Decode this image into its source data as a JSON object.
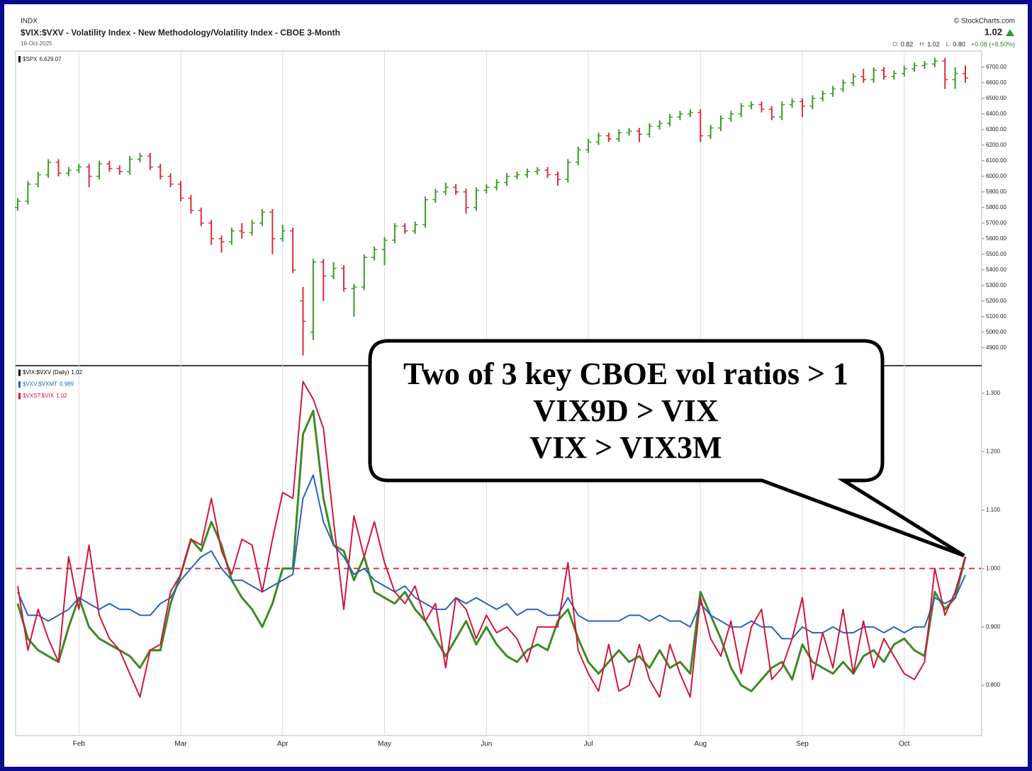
{
  "header": {
    "exchange": "INDX",
    "title": "$VIX:$VXV - Volatility Index - New Methodology/Volatility Index - CBOE 3-Month",
    "date": "16-Oct-2025",
    "source": "© StockCharts.com",
    "last": "1.02",
    "quote": [
      {
        "label": "O:",
        "value": "0.82"
      },
      {
        "label": "H:",
        "value": "1.02"
      },
      {
        "label": "L:",
        "value": "0.80"
      }
    ],
    "change": "+0.08 (+8.50%)"
  },
  "annotation": [
    "Two of 3 key CBOE vol ratios > 1",
    "VIX9D > VIX",
    "VIX > VIX3M"
  ],
  "chart_data": [
    {
      "type": "ohlc",
      "legend": "$SPX",
      "legend_value": "6,629.07",
      "up_color": "#3e9a2c",
      "down_color": "#d6303a",
      "ylim": [
        4790,
        6790
      ],
      "yticks": [
        {
          "value": 4900,
          "label": "4900.00"
        },
        {
          "value": 5000,
          "label": "5000.00"
        },
        {
          "value": 5100,
          "label": "5100.00"
        },
        {
          "value": 5200,
          "label": "5200.00"
        },
        {
          "value": 5300,
          "label": "5300.00"
        },
        {
          "value": 5400,
          "label": "5400.00"
        },
        {
          "value": 5500,
          "label": "5500.00"
        },
        {
          "value": 5600,
          "label": "5600.00"
        },
        {
          "value": 5700,
          "label": "5700.00"
        },
        {
          "value": 5800,
          "label": "5800.00"
        },
        {
          "value": 5900,
          "label": "5900.00"
        },
        {
          "value": 6000,
          "label": "6000.00"
        },
        {
          "value": 6100,
          "label": "6100.00"
        },
        {
          "value": 6200,
          "label": "6200.00"
        },
        {
          "value": 6300,
          "label": "6300.00"
        },
        {
          "value": 6400,
          "label": "6400.00"
        },
        {
          "value": 6500,
          "label": "6500.00"
        },
        {
          "value": 6600,
          "label": "6600.00"
        },
        {
          "value": 6700,
          "label": "6700.00"
        }
      ],
      "open": [
        5800,
        5840,
        5950,
        6010,
        6090,
        6020,
        6040,
        6060,
        6000,
        6080,
        6050,
        6030,
        6110,
        6130,
        6060,
        6000,
        5950,
        5860,
        5780,
        5700,
        5600,
        5580,
        5650,
        5640,
        5700,
        5770,
        5600,
        5650,
        5200,
        5000,
        5450,
        5360,
        5410,
        5280,
        5290,
        5480,
        5530,
        5590,
        5680,
        5650,
        5690,
        5850,
        5900,
        5930,
        5900,
        5800,
        5910,
        5930,
        5960,
        6000,
        6010,
        6030,
        6040,
        6010,
        5980,
        6090,
        6170,
        6220,
        6260,
        6240,
        6280,
        6290,
        6270,
        6320,
        6340,
        6380,
        6400,
        6410,
        6260,
        6310,
        6370,
        6400,
        6450,
        6460,
        6430,
        6380,
        6460,
        6480,
        6450,
        6500,
        6530,
        6560,
        6600,
        6640,
        6620,
        6680,
        6640,
        6660,
        6690,
        6710,
        6720,
        6740,
        6620,
        6660
      ],
      "high": [
        5860,
        5970,
        6030,
        6110,
        6110,
        6060,
        6080,
        6080,
        6100,
        6100,
        6070,
        6130,
        6150,
        6150,
        6080,
        6020,
        5970,
        5880,
        5800,
        5720,
        5620,
        5670,
        5700,
        5720,
        5790,
        5790,
        5690,
        5670,
        5290,
        5470,
        5470,
        5450,
        5430,
        5310,
        5500,
        5550,
        5610,
        5700,
        5700,
        5710,
        5870,
        5920,
        5960,
        5950,
        5920,
        5930,
        5950,
        5980,
        6020,
        6030,
        6050,
        6060,
        6060,
        6030,
        6110,
        6190,
        6240,
        6280,
        6280,
        6300,
        6310,
        6310,
        6340,
        6360,
        6400,
        6420,
        6430,
        6430,
        6330,
        6390,
        6420,
        6470,
        6480,
        6480,
        6450,
        6480,
        6500,
        6500,
        6520,
        6550,
        6580,
        6620,
        6660,
        6690,
        6700,
        6700,
        6680,
        6710,
        6730,
        6740,
        6760,
        6760,
        6700,
        6710
      ],
      "low": [
        5780,
        5820,
        5930,
        5990,
        6000,
        6000,
        6020,
        5930,
        5980,
        6030,
        6010,
        6010,
        6090,
        6040,
        5980,
        5930,
        5840,
        5760,
        5680,
        5560,
        5510,
        5560,
        5600,
        5620,
        5680,
        5500,
        5580,
        5380,
        4850,
        4950,
        5200,
        5340,
        5260,
        5100,
        5270,
        5460,
        5430,
        5570,
        5630,
        5630,
        5670,
        5830,
        5880,
        5880,
        5760,
        5780,
        5890,
        5910,
        5940,
        5980,
        5990,
        6010,
        5990,
        5940,
        5960,
        6070,
        6150,
        6200,
        6220,
        6220,
        6260,
        6220,
        6250,
        6300,
        6320,
        6360,
        6380,
        6220,
        6240,
        6290,
        6350,
        6380,
        6430,
        6410,
        6360,
        6360,
        6440,
        6380,
        6430,
        6480,
        6510,
        6540,
        6580,
        6600,
        6600,
        6620,
        6620,
        6640,
        6670,
        6690,
        6700,
        6560,
        6560,
        6600
      ],
      "close": [
        5840,
        5950,
        6010,
        6090,
        6020,
        6040,
        6060,
        6000,
        6080,
        6050,
        6030,
        6110,
        6130,
        6060,
        6000,
        5950,
        5860,
        5780,
        5700,
        5600,
        5580,
        5650,
        5640,
        5700,
        5770,
        5600,
        5650,
        5400,
        5070,
        5450,
        5360,
        5410,
        5280,
        5290,
        5480,
        5530,
        5590,
        5680,
        5650,
        5690,
        5850,
        5900,
        5930,
        5900,
        5800,
        5910,
        5930,
        5960,
        6000,
        6010,
        6030,
        6040,
        6010,
        5980,
        6090,
        6170,
        6220,
        6260,
        6240,
        6280,
        6290,
        6270,
        6320,
        6340,
        6380,
        6400,
        6410,
        6260,
        6310,
        6370,
        6400,
        6450,
        6460,
        6430,
        6380,
        6460,
        6480,
        6450,
        6500,
        6530,
        6560,
        6600,
        6640,
        6620,
        6680,
        6640,
        6660,
        6690,
        6710,
        6720,
        6740,
        6620,
        6660,
        6630
      ]
    },
    {
      "type": "line",
      "categories": [
        null,
        null,
        null,
        null,
        null,
        null,
        "Feb",
        null,
        null,
        null,
        null,
        null,
        null,
        null,
        null,
        null,
        "Mar",
        null,
        null,
        null,
        null,
        null,
        null,
        null,
        null,
        null,
        "Apr",
        null,
        null,
        null,
        null,
        null,
        null,
        null,
        null,
        null,
        "May",
        null,
        null,
        null,
        null,
        null,
        null,
        null,
        null,
        null,
        "Jun",
        null,
        null,
        null,
        null,
        null,
        null,
        null,
        null,
        null,
        "Jul",
        null,
        null,
        null,
        null,
        null,
        null,
        null,
        null,
        null,
        null,
        "Aug",
        null,
        null,
        null,
        null,
        null,
        null,
        null,
        null,
        null,
        "Sep",
        null,
        null,
        null,
        null,
        null,
        null,
        null,
        null,
        null,
        "Oct",
        null,
        null,
        null,
        null,
        null,
        null
      ],
      "ylim": [
        0.714,
        1.346
      ],
      "yticks": [
        {
          "value": 0.8,
          "label": "0.800"
        },
        {
          "value": 0.9,
          "label": "0.900"
        },
        {
          "value": 1,
          "label": "1.000"
        },
        {
          "value": 1.1,
          "label": "1.100"
        },
        {
          "value": 1.2,
          "label": "1.200"
        },
        {
          "value": 1.3,
          "label": "1.300"
        }
      ],
      "reference_line": {
        "value": 1,
        "color": "#e8304a"
      },
      "series": [
        {
          "name": "$VIX:$VXV (Daily)",
          "last": 1.02,
          "color": "#3e8a24",
          "legend_color": "#000000",
          "values": [
            0.94,
            0.88,
            0.86,
            0.85,
            0.84,
            0.9,
            0.95,
            0.9,
            0.88,
            0.87,
            0.86,
            0.85,
            0.83,
            0.86,
            0.86,
            0.94,
            0.99,
            1.05,
            1.03,
            1.08,
            1.04,
            0.98,
            0.95,
            0.93,
            0.9,
            0.94,
            1.0,
            1.0,
            1.23,
            1.27,
            1.12,
            1.04,
            1.03,
            0.98,
            1.02,
            0.96,
            0.95,
            0.94,
            0.96,
            0.93,
            0.91,
            0.88,
            0.85,
            0.88,
            0.91,
            0.87,
            0.9,
            0.87,
            0.85,
            0.84,
            0.86,
            0.87,
            0.86,
            0.91,
            0.93,
            0.88,
            0.84,
            0.82,
            0.84,
            0.86,
            0.84,
            0.85,
            0.83,
            0.86,
            0.83,
            0.84,
            0.82,
            0.96,
            0.92,
            0.88,
            0.83,
            0.8,
            0.79,
            0.81,
            0.83,
            0.84,
            0.81,
            0.87,
            0.84,
            0.83,
            0.82,
            0.84,
            0.82,
            0.85,
            0.86,
            0.84,
            0.87,
            0.88,
            0.86,
            0.85,
            0.96,
            0.93,
            0.95,
            1.02
          ]
        },
        {
          "name": "$VXV:$VXMT",
          "last": 0.989,
          "color": "#2a62c0",
          "legend_color": "#2a62c0",
          "values": [
            0.96,
            0.92,
            0.92,
            0.91,
            0.92,
            0.93,
            0.95,
            0.94,
            0.93,
            0.94,
            0.93,
            0.93,
            0.92,
            0.92,
            0.94,
            0.95,
            0.98,
            1.0,
            1.02,
            1.03,
            1.0,
            0.98,
            0.98,
            0.97,
            0.96,
            0.97,
            0.98,
            0.99,
            1.12,
            1.16,
            1.08,
            1.04,
            1.02,
            0.99,
            1.0,
            0.98,
            0.97,
            0.96,
            0.97,
            0.95,
            0.94,
            0.93,
            0.93,
            0.95,
            0.94,
            0.95,
            0.94,
            0.93,
            0.94,
            0.92,
            0.93,
            0.93,
            0.92,
            0.92,
            0.95,
            0.92,
            0.91,
            0.91,
            0.91,
            0.91,
            0.92,
            0.92,
            0.91,
            0.92,
            0.91,
            0.91,
            0.9,
            0.94,
            0.92,
            0.91,
            0.9,
            0.9,
            0.91,
            0.9,
            0.9,
            0.88,
            0.88,
            0.9,
            0.89,
            0.89,
            0.9,
            0.89,
            0.89,
            0.9,
            0.9,
            0.89,
            0.9,
            0.89,
            0.9,
            0.9,
            0.95,
            0.94,
            0.95,
            0.989
          ]
        },
        {
          "name": "$VXST:$VIX",
          "last": 1.02,
          "color": "#d0163e",
          "legend_color": "#d0163e",
          "values": [
            0.97,
            0.86,
            0.93,
            0.88,
            0.84,
            1.02,
            0.93,
            1.04,
            0.92,
            0.88,
            0.86,
            0.82,
            0.78,
            0.86,
            0.87,
            0.96,
            0.99,
            1.05,
            1.04,
            1.12,
            1.03,
            0.99,
            1.05,
            1.04,
            0.96,
            1.05,
            1.13,
            1.12,
            1.32,
            1.29,
            1.24,
            1.08,
            0.93,
            1.09,
            1.02,
            1.08,
            1.01,
            0.96,
            0.94,
            0.97,
            0.91,
            0.94,
            0.83,
            0.95,
            0.93,
            0.88,
            0.92,
            0.89,
            0.9,
            0.88,
            0.84,
            0.9,
            0.9,
            0.9,
            1.01,
            0.86,
            0.82,
            0.79,
            0.87,
            0.79,
            0.8,
            0.87,
            0.81,
            0.78,
            0.87,
            0.82,
            0.78,
            0.95,
            0.88,
            0.85,
            0.91,
            0.82,
            0.9,
            0.93,
            0.81,
            0.83,
            0.88,
            0.95,
            0.81,
            0.89,
            0.83,
            0.93,
            0.82,
            0.91,
            0.83,
            0.88,
            0.85,
            0.82,
            0.81,
            0.84,
            1.0,
            0.92,
            0.96,
            1.02
          ]
        }
      ]
    }
  ]
}
